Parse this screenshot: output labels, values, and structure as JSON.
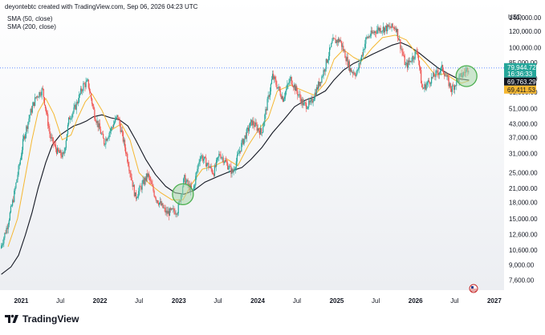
{
  "header": {
    "caption": "deyontebtc created with TradingView.com, Sep 06, 2026 04:23 UTC"
  },
  "indicators": [
    {
      "label": "SMA (50, close)"
    },
    {
      "label": "SMA (200, close)"
    }
  ],
  "footer": {
    "brand": "TradingView"
  },
  "colors": {
    "up_candle": "#26a69a",
    "down_candle": "#ef5350",
    "sma50": "#f5b731",
    "sma200": "#131722",
    "circle_stroke": "#4caf50",
    "circle_fill": "#a5d6a7",
    "price_line": "#2962ff"
  },
  "chart_data": {
    "type": "candlestick",
    "scale": "log",
    "currency": "USD",
    "y_ticks": [
      "140,000.00",
      "120,000.00",
      "100,000.00",
      "85,000.00",
      "71,000.00",
      "61,000.00",
      "51,000.00",
      "43,000.00",
      "37,000.00",
      "31,000.00",
      "25,000.00",
      "21,000.00",
      "18,000.00",
      "15,000.00",
      "12,600.00",
      "10,600.00",
      "9,000.00",
      "7,600.00"
    ],
    "x_ticks": [
      "2021",
      "Jul",
      "2022",
      "Jul",
      "2023",
      "Jul",
      "2024",
      "Jul",
      "2025",
      "Jul",
      "2026",
      "Jul",
      "2027"
    ],
    "price_labels": [
      {
        "name": "Last",
        "text": "79,944.72",
        "sub": "16:36:33",
        "color": "#26a69a"
      },
      {
        "name": "SMA 200",
        "text": "69,763.29",
        "color": "#131722"
      },
      {
        "name": "SMA 50",
        "text": "69,411.53",
        "color": "#f5b731"
      }
    ],
    "price_points": [
      [
        "2020-10-01",
        10800
      ],
      [
        "2020-11-01",
        13800
      ],
      [
        "2020-12-01",
        19000
      ],
      [
        "2021-01-01",
        29000
      ],
      [
        "2021-01-15",
        36000
      ],
      [
        "2021-02-15",
        48000
      ],
      [
        "2021-03-15",
        58000
      ],
      [
        "2021-04-14",
        63000
      ],
      [
        "2021-05-20",
        37000
      ],
      [
        "2021-06-22",
        31500
      ],
      [
        "2021-07-20",
        30000
      ],
      [
        "2021-08-15",
        46000
      ],
      [
        "2021-09-07",
        50000
      ],
      [
        "2021-10-20",
        66000
      ],
      [
        "2021-11-10",
        68000
      ],
      [
        "2021-12-10",
        48000
      ],
      [
        "2022-01-24",
        35000
      ],
      [
        "2022-03-28",
        47000
      ],
      [
        "2022-05-10",
        30000
      ],
      [
        "2022-06-18",
        19000
      ],
      [
        "2022-08-14",
        24500
      ],
      [
        "2022-09-20",
        19000
      ],
      [
        "2022-11-09",
        16000
      ],
      [
        "2022-12-31",
        16500
      ],
      [
        "2023-01-30",
        23500
      ],
      [
        "2023-03-10",
        20000
      ],
      [
        "2023-04-14",
        30500
      ],
      [
        "2023-06-15",
        25000
      ],
      [
        "2023-07-13",
        31000
      ],
      [
        "2023-09-11",
        25000
      ],
      [
        "2023-10-24",
        34500
      ],
      [
        "2023-12-08",
        44000
      ],
      [
        "2024-01-23",
        39000
      ],
      [
        "2024-03-14",
        73000
      ],
      [
        "2024-05-01",
        57000
      ],
      [
        "2024-06-05",
        71000
      ],
      [
        "2024-08-05",
        53000
      ],
      [
        "2024-09-06",
        53500
      ],
      [
        "2024-10-29",
        73000
      ],
      [
        "2024-12-17",
        107000
      ],
      [
        "2025-01-20",
        109000
      ],
      [
        "2025-03-10",
        78000
      ],
      [
        "2025-04-08",
        75000
      ],
      [
        "2025-05-22",
        111000
      ],
      [
        "2025-07-14",
        123000
      ],
      [
        "2025-08-14",
        124000
      ],
      [
        "2025-10-06",
        126000
      ],
      [
        "2025-11-21",
        81000
      ],
      [
        "2026-01-14",
        97000
      ],
      [
        "2026-02-05",
        63000
      ],
      [
        "2026-03-25",
        72000
      ],
      [
        "2026-05-10",
        80000
      ],
      [
        "2026-06-20",
        63000
      ],
      [
        "2026-07-20",
        70000
      ],
      [
        "2026-09-06",
        79944
      ]
    ],
    "sma50": [
      [
        "2020-11-01",
        11000
      ],
      [
        "2020-12-15",
        15000
      ],
      [
        "2021-01-20",
        24000
      ],
      [
        "2021-02-20",
        36000
      ],
      [
        "2021-03-20",
        49000
      ],
      [
        "2021-04-25",
        57000
      ],
      [
        "2021-06-01",
        48000
      ],
      [
        "2021-07-10",
        36000
      ],
      [
        "2021-08-20",
        38000
      ],
      [
        "2021-09-20",
        46000
      ],
      [
        "2021-10-25",
        55000
      ],
      [
        "2021-11-25",
        60000
      ],
      [
        "2022-01-10",
        50000
      ],
      [
        "2022-02-20",
        40000
      ],
      [
        "2022-04-10",
        43000
      ],
      [
        "2022-05-20",
        36000
      ],
      [
        "2022-07-01",
        25000
      ],
      [
        "2022-08-20",
        22000
      ],
      [
        "2022-10-10",
        20000
      ],
      [
        "2022-12-01",
        18500
      ],
      [
        "2023-01-20",
        18500
      ],
      [
        "2023-03-01",
        22000
      ],
      [
        "2023-04-20",
        26000
      ],
      [
        "2023-06-15",
        27000
      ],
      [
        "2023-08-15",
        29000
      ],
      [
        "2023-10-01",
        27000
      ],
      [
        "2023-11-20",
        34000
      ],
      [
        "2024-01-10",
        41000
      ],
      [
        "2024-02-20",
        46000
      ],
      [
        "2024-04-01",
        62000
      ],
      [
        "2024-06-01",
        66000
      ],
      [
        "2024-08-01",
        62000
      ],
      [
        "2024-09-20",
        59000
      ],
      [
        "2024-11-10",
        68000
      ],
      [
        "2024-12-20",
        88000
      ],
      [
        "2025-02-01",
        98000
      ],
      [
        "2025-03-20",
        90000
      ],
      [
        "2025-04-25",
        86000
      ],
      [
        "2025-06-15",
        100000
      ],
      [
        "2025-08-01",
        112000
      ],
      [
        "2025-09-30",
        115000
      ],
      [
        "2025-11-20",
        109000
      ],
      [
        "2026-01-01",
        95000
      ],
      [
        "2026-02-15",
        85000
      ],
      [
        "2026-04-01",
        74000
      ],
      [
        "2026-05-20",
        75000
      ],
      [
        "2026-07-01",
        70000
      ],
      [
        "2026-08-01",
        67500
      ],
      [
        "2026-09-06",
        69411
      ]
    ],
    "sma200": [
      [
        "2020-10-01",
        8100
      ],
      [
        "2020-11-15",
        8800
      ],
      [
        "2020-12-20",
        10000
      ],
      [
        "2021-01-20",
        12500
      ],
      [
        "2021-02-20",
        16000
      ],
      [
        "2021-03-20",
        21000
      ],
      [
        "2021-04-25",
        28000
      ],
      [
        "2021-05-25",
        34000
      ],
      [
        "2021-07-01",
        38000
      ],
      [
        "2021-08-01",
        40000
      ],
      [
        "2021-09-01",
        42000
      ],
      [
        "2021-10-01",
        43000
      ],
      [
        "2021-11-01",
        44500
      ],
      [
        "2021-12-01",
        46500
      ],
      [
        "2022-01-10",
        47500
      ],
      [
        "2022-02-20",
        46000
      ],
      [
        "2022-04-01",
        45000
      ],
      [
        "2022-05-10",
        42000
      ],
      [
        "2022-06-15",
        36000
      ],
      [
        "2022-08-01",
        29000
      ],
      [
        "2022-09-15",
        24500
      ],
      [
        "2022-11-01",
        21500
      ],
      [
        "2022-12-15",
        20000
      ],
      [
        "2023-01-25",
        19700
      ],
      [
        "2023-03-10",
        20500
      ],
      [
        "2023-05-01",
        22500
      ],
      [
        "2023-07-01",
        24000
      ],
      [
        "2023-09-01",
        25500
      ],
      [
        "2023-10-20",
        26500
      ],
      [
        "2023-12-01",
        29000
      ],
      [
        "2024-01-20",
        33000
      ],
      [
        "2024-03-10",
        39000
      ],
      [
        "2024-05-01",
        45000
      ],
      [
        "2024-06-20",
        52000
      ],
      [
        "2024-08-10",
        56000
      ],
      [
        "2024-09-20",
        58000
      ],
      [
        "2024-11-10",
        62000
      ],
      [
        "2024-12-20",
        70000
      ],
      [
        "2025-02-01",
        78000
      ],
      [
        "2025-03-20",
        84000
      ],
      [
        "2025-05-01",
        88000
      ],
      [
        "2025-06-15",
        93000
      ],
      [
        "2025-08-01",
        98000
      ],
      [
        "2025-09-15",
        103000
      ],
      [
        "2025-10-25",
        106000
      ],
      [
        "2025-12-01",
        102000
      ],
      [
        "2026-01-15",
        95000
      ],
      [
        "2026-03-01",
        87000
      ],
      [
        "2026-04-15",
        80000
      ],
      [
        "2026-06-01",
        75000
      ],
      [
        "2026-07-15",
        71000
      ],
      [
        "2026-09-06",
        69763
      ]
    ],
    "annotations": [
      {
        "type": "circle",
        "date": "2023-01-20",
        "price": 19700
      },
      {
        "type": "circle",
        "date": "2026-08-25",
        "price": 73000
      }
    ],
    "last_price": 79944.72,
    "x_start": "2020-09-25",
    "x_end": "2027-02-15"
  }
}
